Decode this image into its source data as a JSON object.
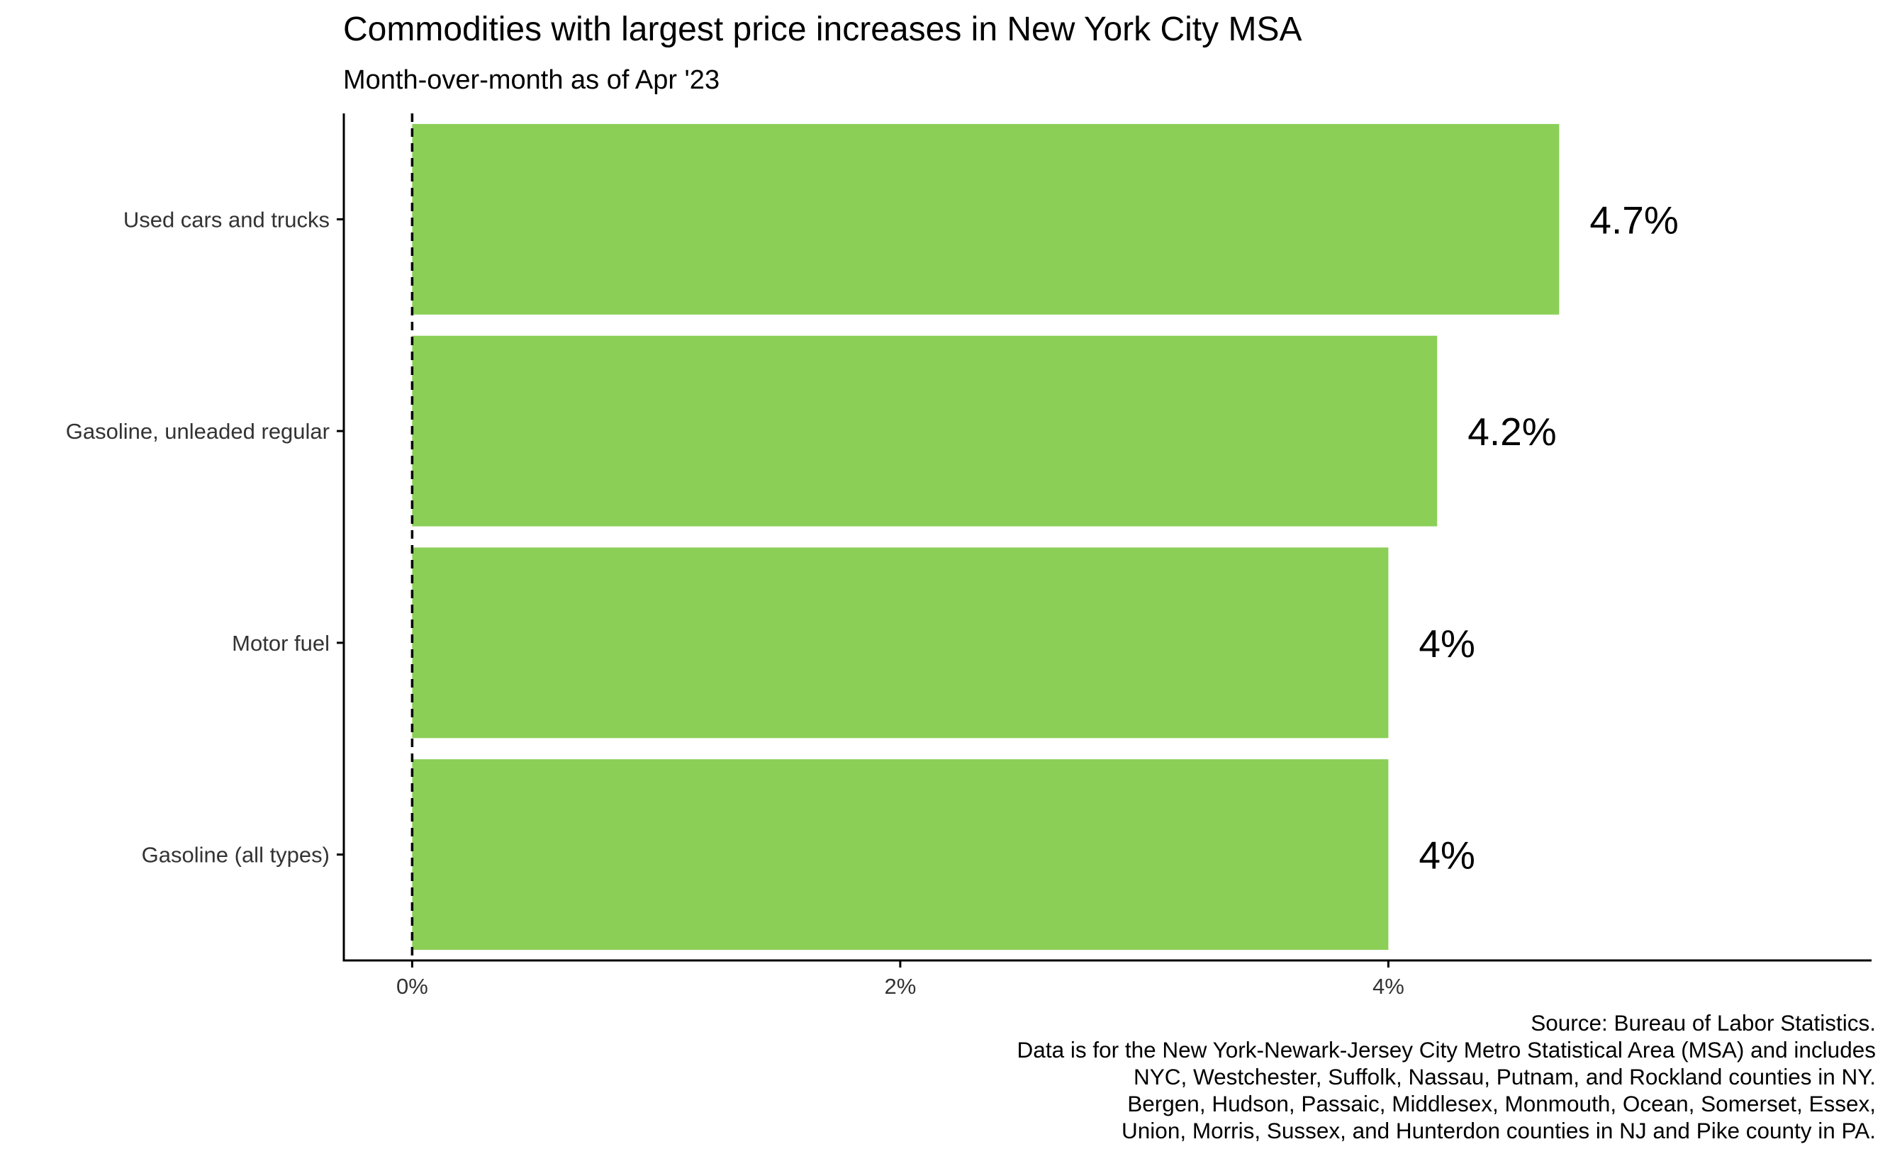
{
  "chart_data": {
    "type": "bar",
    "orientation": "horizontal",
    "title": "Commodities with largest price increases in New York City MSA",
    "subtitle": "Month-over-month as of Apr '23",
    "categories": [
      "Used cars and trucks",
      "Gasoline, unleaded regular",
      "Motor fuel",
      "Gasoline (all types)"
    ],
    "values": [
      4.7,
      4.2,
      4.0,
      4.0
    ],
    "data_labels": [
      "4.7%",
      "4.2%",
      "4%",
      "4%"
    ],
    "xlim": [
      -0.28,
      5.98
    ],
    "xticks": [
      0,
      2,
      4
    ],
    "xtick_labels": [
      "0%",
      "2%",
      "4%"
    ],
    "xlabel": "",
    "ylabel": "",
    "reference_line": {
      "x": 0,
      "style": "dashed"
    },
    "grid": false,
    "legend": "none",
    "caption": [
      "Source: Bureau of Labor Statistics.",
      "Data is for the New York-Newark-Jersey City Metro Statistical Area (MSA) and includes",
      "NYC, Westchester, Suffolk, Nassau, Putnam, and Rockland counties in NY.",
      "Bergen, Hudson, Passaic, Middlesex, Monmouth, Ocean, Somerset, Essex,",
      "Union, Morris, Sussex, and Hunterdon counties in NJ and Pike county in PA."
    ]
  },
  "colors": {
    "bar": "#8BCF57",
    "axis": "#000000",
    "tick_text": "#333333"
  }
}
